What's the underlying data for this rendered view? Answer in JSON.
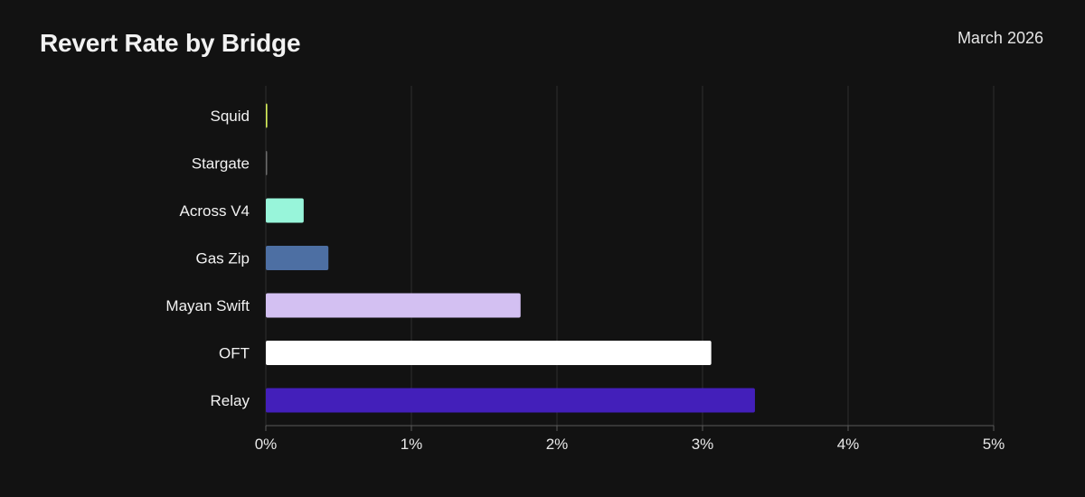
{
  "header": {
    "title": "Revert Rate by Bridge",
    "date": "March 2026"
  },
  "chart_data": {
    "type": "bar",
    "orientation": "horizontal",
    "title": "Revert Rate by Bridge",
    "subtitle": "March 2026",
    "xlabel": "",
    "ylabel": "",
    "xlim": [
      0,
      5
    ],
    "x_ticks": [
      0,
      1,
      2,
      3,
      4,
      5
    ],
    "x_tick_labels": [
      "0%",
      "1%",
      "2%",
      "3%",
      "4%",
      "5%"
    ],
    "grid": "vertical",
    "legend": "none",
    "categories": [
      "Squid",
      "Stargate",
      "Across V4",
      "Gas Zip",
      "Mayan Swift",
      "OFT",
      "Relay"
    ],
    "values": [
      0.01,
      0.005,
      0.26,
      0.43,
      1.75,
      3.06,
      3.36
    ],
    "colors": [
      "#d8f05a",
      "#6b6b6b",
      "#98f5da",
      "#4d6fa3",
      "#d3c0f2",
      "#ffffff",
      "#431fba"
    ]
  }
}
